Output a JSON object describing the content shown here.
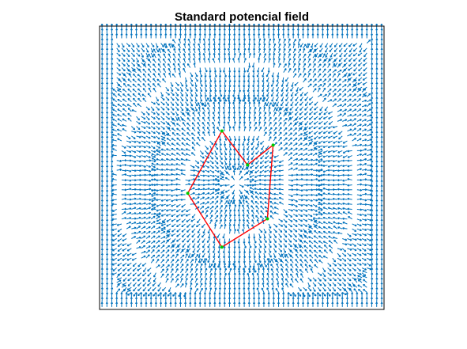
{
  "chart_data": {
    "type": "quiver",
    "title": "Standard potencial field",
    "xlabel": "",
    "ylabel": "",
    "xlim": [
      0,
      1
    ],
    "ylim": [
      0,
      1
    ],
    "grid": false,
    "legend": "none",
    "axis_ticks_visible": false,
    "series": [
      {
        "kind": "vector-field",
        "color": "#0072BD",
        "grid_count": [
          58,
          58
        ],
        "field": "radial waves centered on polygon (cos of distance) with unit-length arrows"
      },
      {
        "kind": "polygon",
        "edge_color": "#FF0000",
        "vertex_color": "#00CC00",
        "vertices": [
          [
            0.43,
            0.22
          ],
          [
            0.59,
            0.32
          ],
          [
            0.61,
            0.58
          ],
          [
            0.52,
            0.51
          ],
          [
            0.43,
            0.63
          ],
          [
            0.31,
            0.41
          ]
        ]
      }
    ]
  },
  "colors": {
    "arrows": "#0072BD",
    "polygon_edges": "#FF0000",
    "polygon_vertices": "#00CC00",
    "axes": "#000000"
  }
}
